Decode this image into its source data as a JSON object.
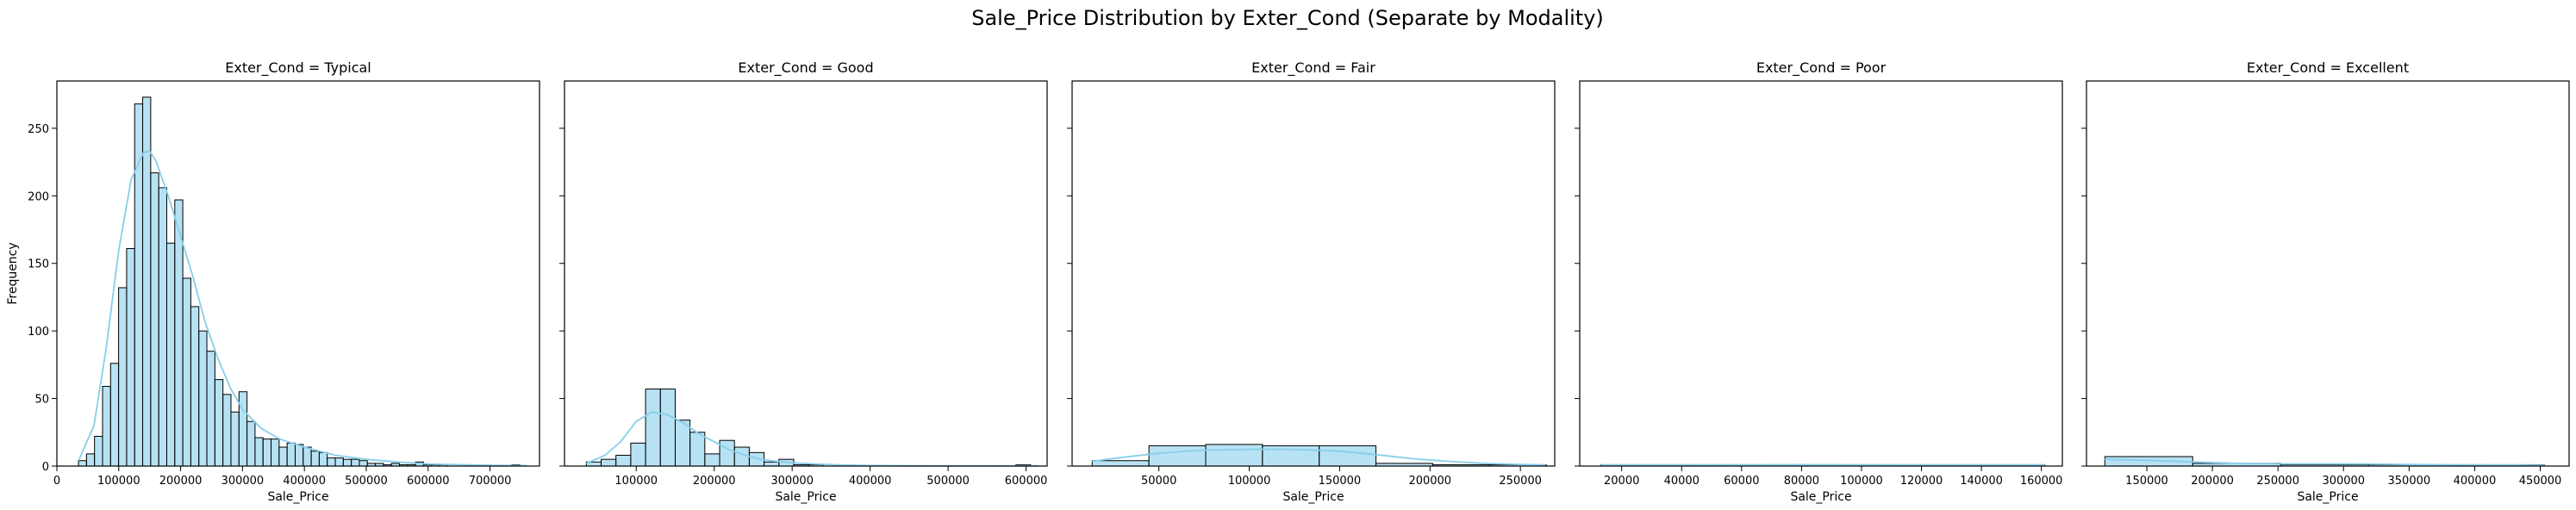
{
  "figure": {
    "title": "Sale_Price Distribution by Exter_Cond (Separate by Modality)",
    "ylabel": "Frequency",
    "bar_color": "#87ceeb",
    "edge_color": "#000000",
    "kde_color": "#87ceeb"
  },
  "chart_data": [
    {
      "type": "histogram",
      "title": "Exter_Cond = Typical",
      "xlabel": "Sale_Price",
      "ylabel": "Frequency",
      "xlim": [
        0,
        780000
      ],
      "ylim": [
        0,
        285
      ],
      "xticks": [
        0,
        100000,
        200000,
        300000,
        400000,
        500000,
        600000,
        700000
      ],
      "yticks": [
        0,
        50,
        100,
        150,
        200,
        250
      ],
      "ytick_labels_visible": true,
      "bin_edges": [
        34900,
        47870,
        60840,
        73810,
        86780,
        99750,
        112720,
        125690,
        138660,
        151630,
        164600,
        177570,
        190540,
        203510,
        216480,
        229450,
        242420,
        255390,
        268360,
        281330,
        294300,
        307270,
        320240,
        333210,
        346180,
        359150,
        372120,
        385090,
        398060,
        411030,
        424000,
        436970,
        449940,
        462910,
        475880,
        488850,
        501820,
        514790,
        527760,
        540730,
        553700,
        566670,
        579640,
        592610,
        605580,
        618550,
        631520,
        644490,
        657460,
        670430,
        683400,
        696370,
        709340,
        722310,
        735280,
        748250,
        761220
      ],
      "counts": [
        4,
        9,
        22,
        59,
        76,
        132,
        161,
        268,
        273,
        217,
        206,
        165,
        197,
        139,
        118,
        100,
        85,
        64,
        53,
        40,
        55,
        33,
        21,
        20,
        20,
        14,
        17,
        16,
        14,
        11,
        10,
        6,
        6,
        5,
        5,
        4,
        2,
        2,
        1,
        2,
        1,
        1,
        3,
        1,
        1,
        1,
        0,
        0,
        0,
        0,
        0,
        0,
        0,
        0,
        1,
        0
      ],
      "kde": {
        "x": [
          35000,
          60000,
          80000,
          100000,
          120000,
          140000,
          150000,
          160000,
          180000,
          200000,
          220000,
          240000,
          260000,
          280000,
          300000,
          330000,
          360000,
          400000,
          450000,
          500000,
          550000,
          600000,
          650000,
          700000,
          760000
        ],
        "y": [
          4,
          30,
          88,
          160,
          212,
          232,
          233,
          226,
          200,
          170,
          140,
          106,
          80,
          58,
          42,
          28,
          20,
          14,
          8,
          5,
          3,
          1.5,
          1,
          0.5,
          0.3
        ]
      }
    },
    {
      "type": "histogram",
      "title": "Exter_Cond = Good",
      "xlabel": "Sale_Price",
      "ylabel": "",
      "xlim": [
        8000,
        627000
      ],
      "ylim": [
        0,
        285
      ],
      "xticks": [
        100000,
        200000,
        300000,
        400000,
        500000,
        600000
      ],
      "yticks": [
        0,
        50,
        100,
        150,
        200,
        250
      ],
      "ytick_labels_visible": false,
      "bin_edges": [
        36000,
        55000,
        74000,
        93000,
        112000,
        131000,
        150000,
        169000,
        188000,
        207000,
        226000,
        245000,
        264000,
        283000,
        302000,
        321000,
        340000,
        359000,
        378000,
        397000,
        416000,
        435000,
        454000,
        473000,
        492000,
        511000,
        530000,
        549000,
        568000,
        587000,
        606000
      ],
      "counts": [
        3,
        5,
        8,
        17,
        57,
        57,
        34,
        25,
        9,
        19,
        14,
        10,
        3,
        5,
        1,
        1,
        0,
        0,
        0,
        0,
        0,
        0,
        0,
        0,
        0,
        0,
        0,
        0,
        0,
        1
      ],
      "kde": {
        "x": [
          36000,
          60000,
          80000,
          100000,
          120000,
          140000,
          160000,
          180000,
          200000,
          220000,
          240000,
          260000,
          280000,
          300000,
          330000,
          360000,
          400000,
          450000,
          500000,
          560000,
          615000
        ],
        "y": [
          2,
          8,
          18,
          33,
          40,
          38,
          32,
          24,
          18,
          12,
          8,
          5,
          3.5,
          2.5,
          1.5,
          0.8,
          0.4,
          0.2,
          0.1,
          0.1,
          0.2
        ]
      }
    },
    {
      "type": "histogram",
      "title": "Exter_Cond = Fair",
      "xlabel": "Sale_Price",
      "ylabel": "",
      "xlim": [
        2000,
        269000
      ],
      "ylim": [
        0,
        285
      ],
      "xticks": [
        50000,
        100000,
        150000,
        200000,
        250000
      ],
      "yticks": [
        0,
        50,
        100,
        150,
        200,
        250
      ],
      "ytick_labels_visible": false,
      "bin_edges": [
        13100,
        44500,
        75900,
        107300,
        138700,
        170100,
        201500,
        232900,
        264300
      ],
      "counts": [
        4,
        15,
        16,
        15,
        15,
        2,
        1,
        1
      ],
      "kde": {
        "x": [
          13000,
          30000,
          50000,
          70000,
          90000,
          110000,
          130000,
          150000,
          170000,
          190000,
          210000,
          230000,
          250000,
          264000
        ],
        "y": [
          3.5,
          6.5,
          9.5,
          11.5,
          12.2,
          12.5,
          12.2,
          11,
          8.5,
          5.5,
          3.5,
          2,
          1.2,
          0.8
        ]
      }
    },
    {
      "type": "histogram",
      "title": "Exter_Cond = Poor",
      "xlabel": "Sale_Price",
      "ylabel": "",
      "xlim": [
        6000,
        167000
      ],
      "ylim": [
        0,
        285
      ],
      "xticks": [
        20000,
        40000,
        60000,
        80000,
        100000,
        120000,
        140000,
        160000
      ],
      "yticks": [
        0,
        50,
        100,
        150,
        200,
        250
      ],
      "ytick_labels_visible": false,
      "bin_edges": [
        13100,
        161000
      ],
      "counts": [
        1
      ],
      "kde": {
        "x": [
          13100,
          40000,
          80000,
          120000,
          161000
        ],
        "y": [
          0.8,
          0.9,
          1,
          0.9,
          0.8
        ]
      }
    },
    {
      "type": "histogram",
      "title": "Exter_Cond = Excellent",
      "xlabel": "Sale_Price",
      "ylabel": "",
      "xlim": [
        104000,
        472000
      ],
      "ylim": [
        0,
        285
      ],
      "xticks": [
        150000,
        200000,
        250000,
        300000,
        350000,
        400000,
        450000
      ],
      "yticks": [
        0,
        50,
        100,
        150,
        200,
        250
      ],
      "ytick_labels_visible": false,
      "bin_edges": [
        118000,
        185000,
        252000,
        319000,
        386000,
        453000
      ],
      "counts": [
        7,
        2,
        1,
        1,
        1
      ],
      "kde": {
        "x": [
          118000,
          150000,
          185000,
          220000,
          252000,
          290000,
          320000,
          360000,
          400000,
          453000
        ],
        "y": [
          5,
          4.3,
          3,
          2,
          1.6,
          1.6,
          1.5,
          1.1,
          0.8,
          0.6
        ]
      }
    }
  ]
}
